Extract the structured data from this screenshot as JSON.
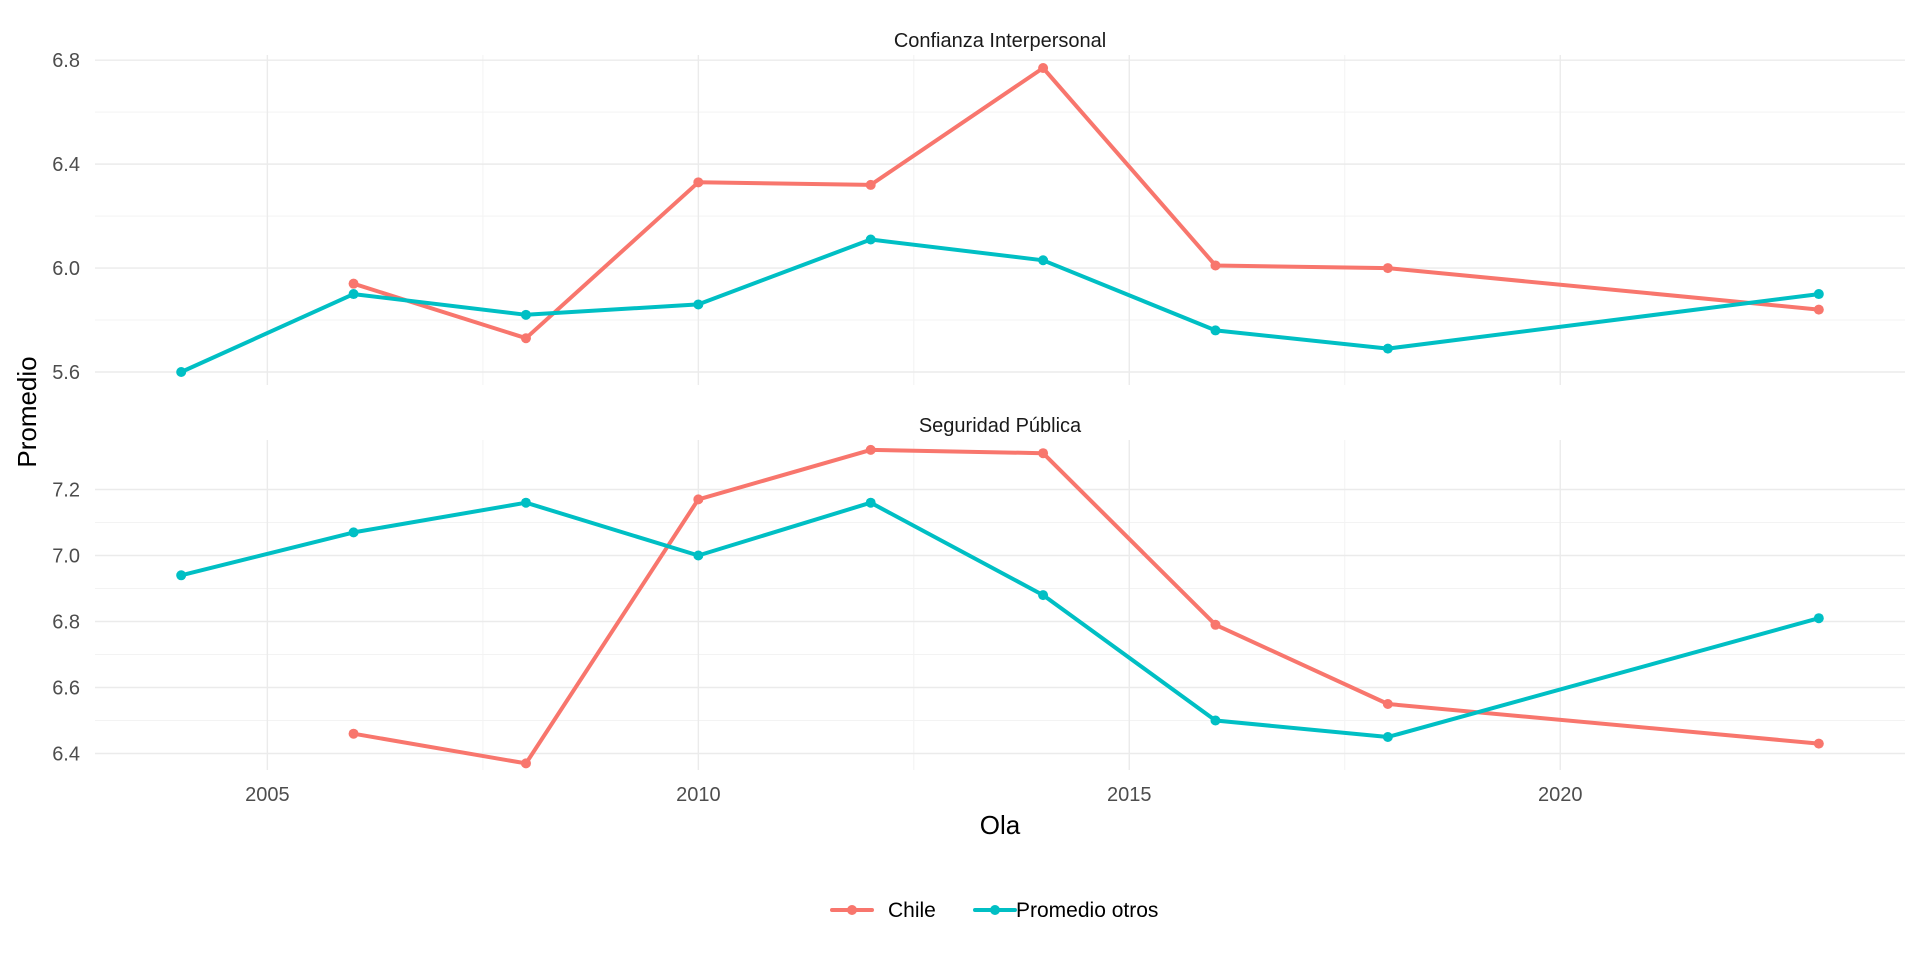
{
  "chart_data": {
    "type": "line",
    "xlabel": "Ola",
    "ylabel": "Promedio",
    "x_ticks": [
      2005,
      2010,
      2015,
      2020
    ],
    "xlim": [
      2003,
      2024
    ],
    "legend": {
      "position": "bottom",
      "entries": [
        "Chile",
        "Promedio otros"
      ]
    },
    "series_colors": {
      "Chile": "#F8766D",
      "Promedio otros": "#00BFC4"
    },
    "grid": true,
    "facets": [
      {
        "title": "Confianza Interpersonal",
        "ylim": [
          5.55,
          6.82
        ],
        "y_ticks": [
          5.6,
          6.0,
          6.4,
          6.8
        ],
        "y_tick_labels": [
          "5.6",
          "6.0",
          "6.4",
          "6.8"
        ],
        "series": [
          {
            "name": "Chile",
            "x": [
              2006,
              2008,
              2010,
              2012,
              2014,
              2016,
              2018,
              2023
            ],
            "values": [
              5.94,
              5.73,
              6.33,
              6.32,
              6.77,
              6.01,
              6.0,
              5.84
            ]
          },
          {
            "name": "Promedio otros",
            "x": [
              2004,
              2006,
              2008,
              2010,
              2012,
              2014,
              2016,
              2018,
              2023
            ],
            "values": [
              5.6,
              5.9,
              5.82,
              5.86,
              6.11,
              6.03,
              5.76,
              5.69,
              5.9
            ]
          }
        ]
      },
      {
        "title": "Seguridad Pública",
        "ylim": [
          6.35,
          7.35
        ],
        "y_ticks": [
          6.4,
          6.6,
          6.8,
          7.0,
          7.2
        ],
        "y_tick_labels": [
          "6.4",
          "6.6",
          "6.8",
          "7.0",
          "7.2"
        ],
        "series": [
          {
            "name": "Chile",
            "x": [
              2006,
              2008,
              2010,
              2012,
              2014,
              2016,
              2018,
              2023
            ],
            "values": [
              6.46,
              6.37,
              7.17,
              7.32,
              7.31,
              6.79,
              6.55,
              6.43
            ]
          },
          {
            "name": "Promedio otros",
            "x": [
              2004,
              2006,
              2008,
              2010,
              2012,
              2014,
              2016,
              2018,
              2023
            ],
            "values": [
              6.94,
              7.07,
              7.16,
              7.0,
              7.16,
              6.88,
              6.5,
              6.45,
              6.81
            ]
          }
        ]
      }
    ]
  }
}
